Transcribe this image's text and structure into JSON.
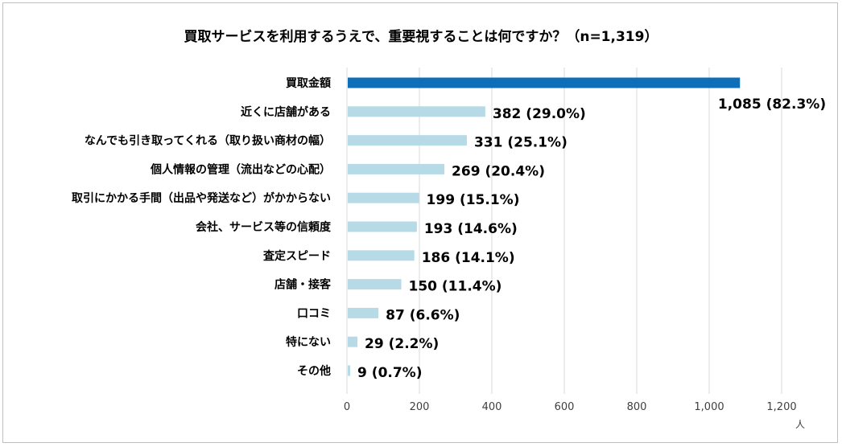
{
  "chart_data": {
    "type": "bar",
    "orientation": "horizontal",
    "title": "買取サービスを利用するうえで、重要視することは何ですか？（n=1,319）",
    "categories": [
      "買取金額",
      "近くに店舗がある",
      "なんでも引き取ってくれる（取り扱い商材の幅）",
      "個人情報の管理（流出などの心配）",
      "取引にかかる手間（出品や発送など）がかからない",
      "会社、サービス等の信頼度",
      "査定スピード",
      "店舗・接客",
      "口コミ",
      "特にない",
      "その他"
    ],
    "values": [
      1085,
      382,
      331,
      269,
      199,
      193,
      186,
      150,
      87,
      29,
      9
    ],
    "data_labels": [
      "1,085 (82.3%)",
      "382 (29.0%)",
      "331 (25.1%)",
      "269 (20.4%)",
      "199 (15.1%)",
      "193 (14.6%)",
      "186 (14.1%)",
      "150 (11.4%)",
      "87 (6.6%)",
      "29 (2.2%)",
      "9 (0.7%)"
    ],
    "xlim": [
      0,
      1200
    ],
    "xticks": [
      0,
      200,
      400,
      600,
      800,
      1000,
      1200
    ],
    "xtick_labels": [
      "0",
      "200",
      "400",
      "600",
      "800",
      "1,000",
      "1,200"
    ],
    "unit": "人",
    "grid": "vertical",
    "legend": "none",
    "colors": {
      "highlight": "#0e6eb8",
      "bar": "#b7dbe6",
      "grid": "#d9d9d9"
    }
  }
}
